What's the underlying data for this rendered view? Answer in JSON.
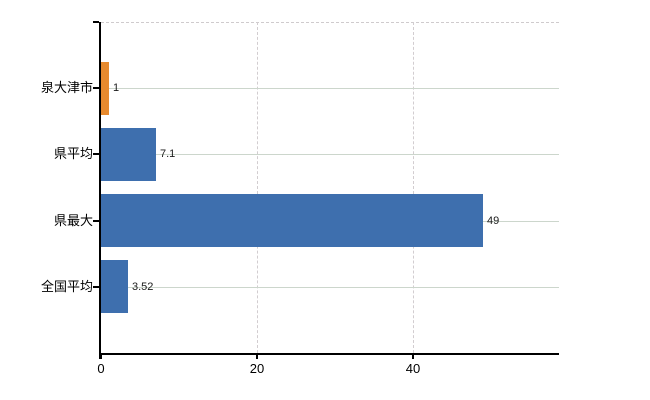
{
  "chart": {
    "background_color": "#ffffff",
    "axis_color": "#000000",
    "h_gridline_color": "#ccd6cc",
    "v_gridline_color": "#d2cdd0",
    "text_color": "#000000",
    "value_label_color": "#1a1a1a"
  },
  "chart_data": {
    "type": "bar",
    "orientation": "horizontal",
    "title": "",
    "xlabel": "",
    "ylabel": "",
    "categories": [
      "泉大津市",
      "県平均",
      "県最大",
      "全国平均"
    ],
    "values": [
      1,
      7.1,
      49,
      3.52
    ],
    "value_labels": [
      "1",
      "7.1",
      "49",
      "3.52"
    ],
    "bar_colors": [
      "#e78a2e",
      "#3e6fae",
      "#3e6fae",
      "#3e6fae"
    ],
    "highlight_color": "#e78a2e",
    "default_bar_color": "#3e6fae",
    "x_ticks": [
      0,
      20,
      40
    ],
    "x_tick_labels": [
      "0",
      "20",
      "40"
    ],
    "xlim": [
      0,
      58.7
    ],
    "grid": true,
    "legend": false,
    "grid_horizontal_style": "solid",
    "grid_vertical_style": "dashed"
  }
}
